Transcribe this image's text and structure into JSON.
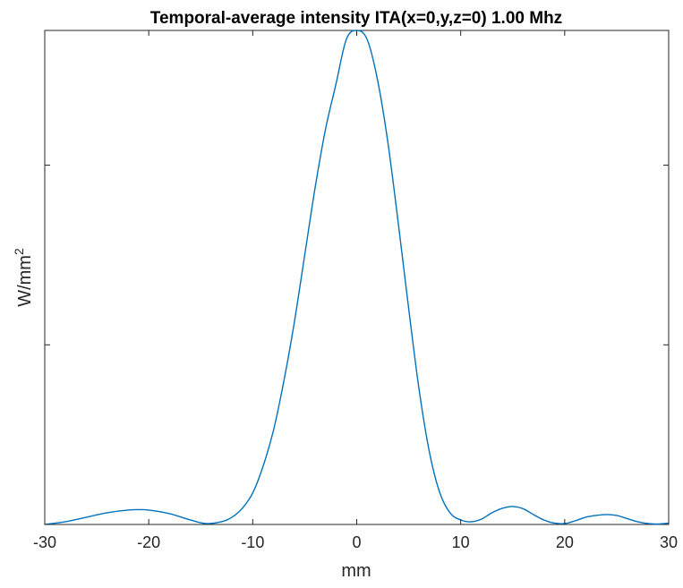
{
  "chart_data": {
    "type": "line",
    "title": "Temporal-average intensity ITA(x=0,y,z=0) 1.00 Mhz",
    "xlabel": "mm",
    "ylabel": "W/mm",
    "ylabel_superscript": "2",
    "xlim": [
      -30,
      30
    ],
    "ylim": [
      0,
      1.1
    ],
    "x_ticks": [
      -30,
      -20,
      -10,
      0,
      10,
      20,
      30
    ],
    "x_tick_labels": [
      "-30",
      "-20",
      "-10",
      "0",
      "10",
      "20",
      "30"
    ],
    "y_ticks": [
      0,
      0.4,
      0.8
    ],
    "y_tick_labels": [
      "",
      "",
      ""
    ],
    "grid": false,
    "line_color": "#0072BD",
    "series": [
      {
        "x": [
          -30,
          -28,
          -26,
          -24,
          -22,
          -21,
          -20,
          -18,
          -16,
          -14.5,
          -13,
          -12,
          -11,
          -10,
          -9,
          -8,
          -7,
          -6,
          -5,
          -4,
          -3,
          -2,
          -1,
          0,
          1,
          2,
          3,
          4,
          5,
          6,
          7,
          8,
          9,
          10,
          11,
          12,
          13,
          14,
          15,
          16,
          17,
          18,
          19,
          20,
          21,
          22,
          23,
          24,
          25,
          26,
          27,
          28,
          29,
          30
        ],
        "y": [
          0.0,
          0.006,
          0.016,
          0.026,
          0.032,
          0.033,
          0.032,
          0.024,
          0.01,
          0.002,
          0.006,
          0.016,
          0.036,
          0.07,
          0.13,
          0.21,
          0.32,
          0.45,
          0.6,
          0.75,
          0.88,
          0.98,
          1.08,
          1.1,
          1.08,
          0.99,
          0.85,
          0.67,
          0.48,
          0.3,
          0.16,
          0.07,
          0.025,
          0.01,
          0.006,
          0.012,
          0.026,
          0.036,
          0.04,
          0.035,
          0.022,
          0.01,
          0.003,
          0.002,
          0.008,
          0.016,
          0.02,
          0.022,
          0.02,
          0.013,
          0.006,
          0.002,
          0.001,
          0.003
        ]
      }
    ]
  }
}
